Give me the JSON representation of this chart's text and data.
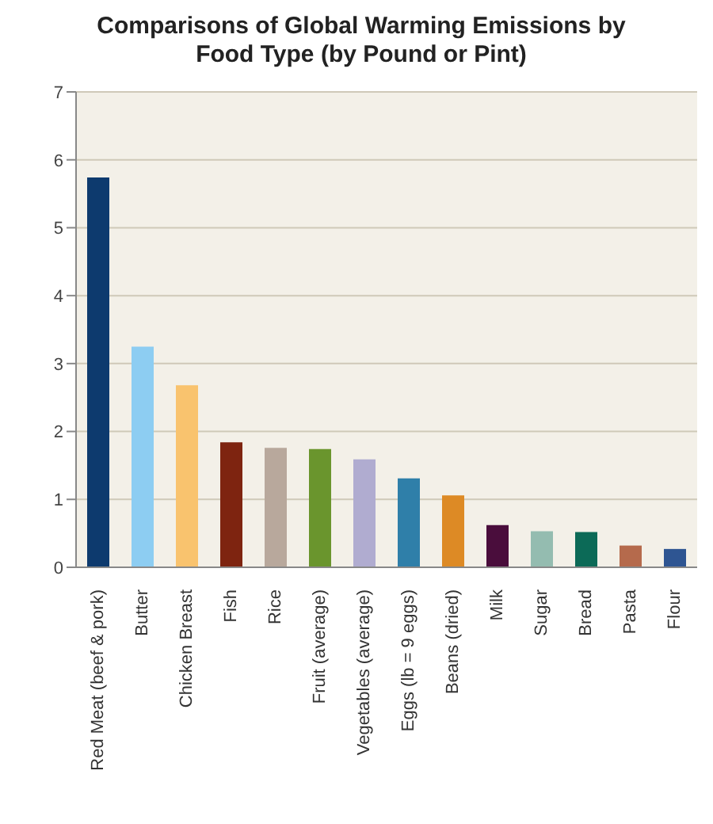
{
  "chart_data": {
    "type": "bar",
    "title": "Comparisons of Global Warming Emissions by Food Type (by Pound or Pint)",
    "categories": [
      "Red Meat (beef & pork)",
      "Butter",
      "Chicken Breast",
      "Fish",
      "Rice",
      "Fruit (average)",
      "Vegetables (average)",
      "Eggs (lb = 9 eggs)",
      "Beans (dried)",
      "Milk",
      "Sugar",
      "Bread",
      "Pasta",
      "Flour"
    ],
    "values": [
      5.74,
      3.25,
      2.68,
      1.84,
      1.76,
      1.74,
      1.59,
      1.31,
      1.06,
      0.62,
      0.53,
      0.52,
      0.32,
      0.27
    ],
    "colors": [
      "#0d3a6e",
      "#8dcdf2",
      "#f9c36e",
      "#7e2410",
      "#b8a89c",
      "#6a952d",
      "#b0acd0",
      "#2f7fa9",
      "#dd8a25",
      "#4a0d3c",
      "#94bcb0",
      "#0c6a57",
      "#b56a4c",
      "#2e5592"
    ],
    "ylim": [
      0,
      7
    ],
    "yticks": [
      0,
      1,
      2,
      3,
      4,
      5,
      6,
      7
    ],
    "grid": "y"
  }
}
